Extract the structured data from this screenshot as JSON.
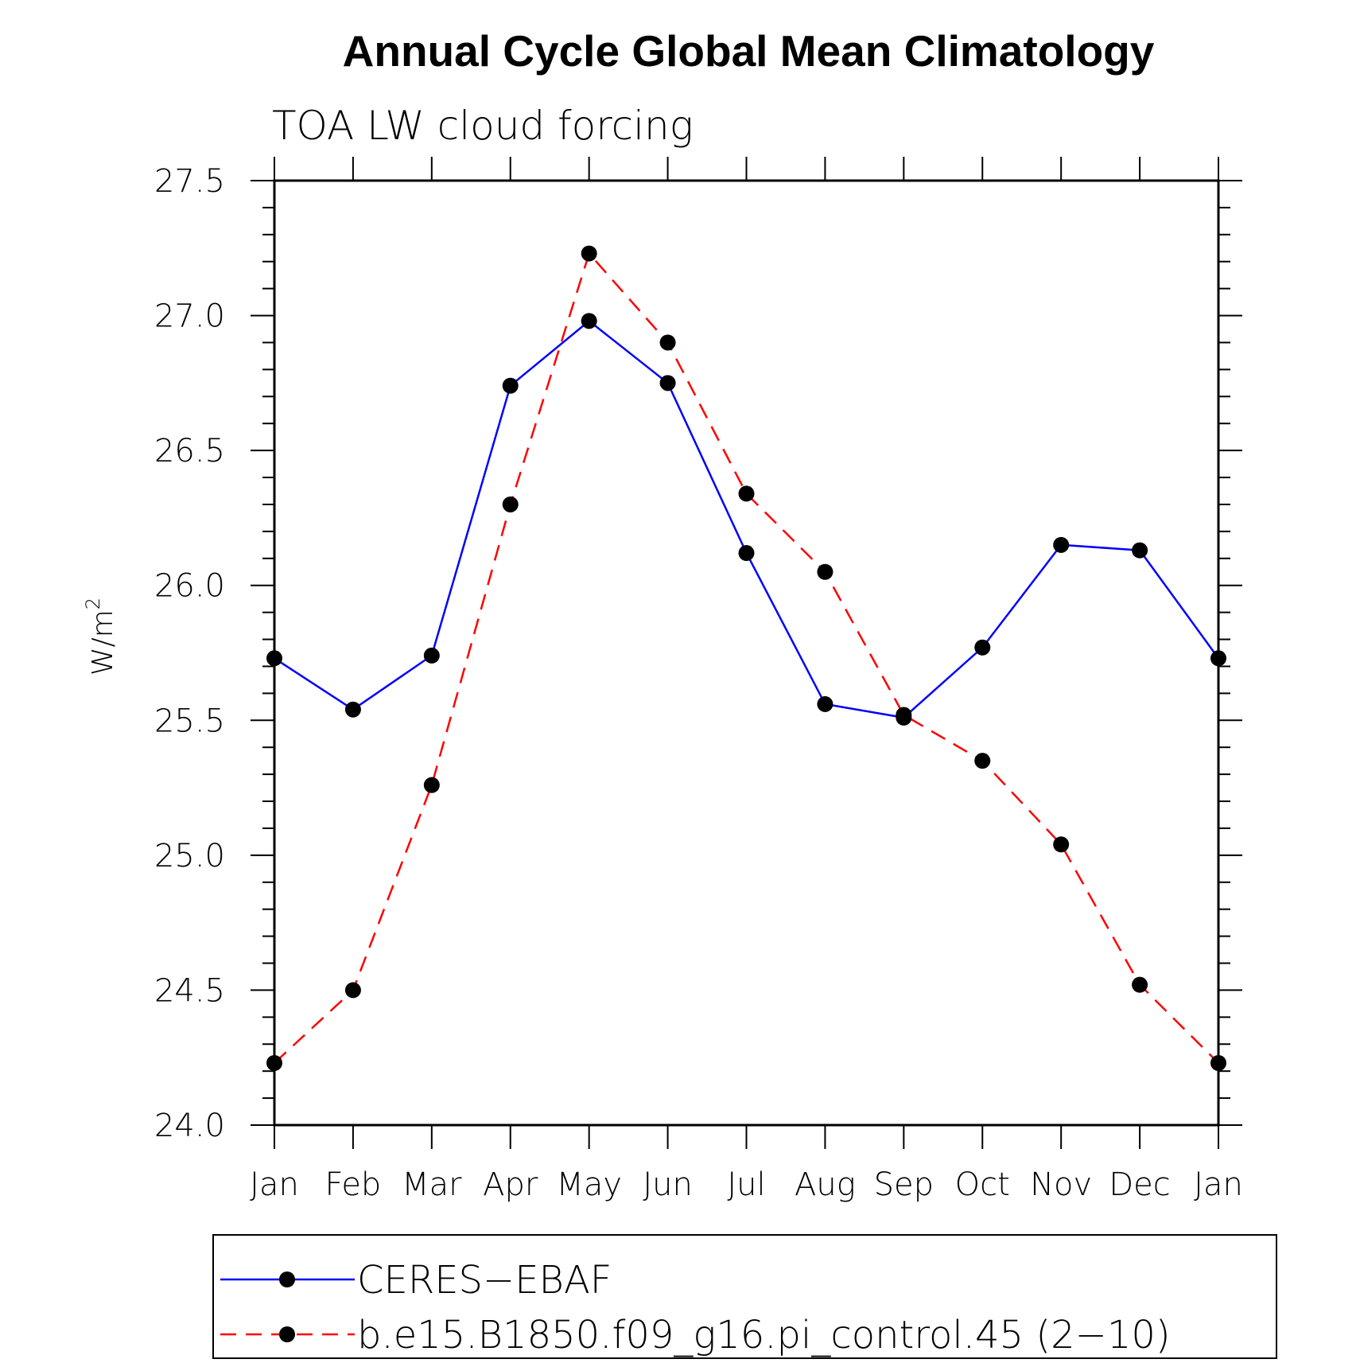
{
  "chart_data": {
    "type": "line",
    "title": "Annual Cycle Global Mean Climatology",
    "subtitle": "TOA LW cloud forcing",
    "ylabel": "W/m",
    "ylabel_sup": "2",
    "xlabel": "",
    "categories": [
      "Jan",
      "Feb",
      "Mar",
      "Apr",
      "May",
      "Jun",
      "Jul",
      "Aug",
      "Sep",
      "Oct",
      "Nov",
      "Dec",
      "Jan"
    ],
    "ylim": [
      24.0,
      27.5
    ],
    "yticks": [
      "24.0",
      "24.5",
      "25.0",
      "25.5",
      "26.0",
      "26.5",
      "27.0",
      "27.5"
    ],
    "grid": false,
    "legend_position": "bottom",
    "series": [
      {
        "name": "CERES−EBAF",
        "color": "#0000ff",
        "style": "solid",
        "marker": "filled-circle",
        "values": [
          25.73,
          25.54,
          25.74,
          26.74,
          26.98,
          26.75,
          26.12,
          25.56,
          25.51,
          25.77,
          26.15,
          26.13,
          25.73
        ]
      },
      {
        "name": "b.e15.B1850.f09_g16.pi_control.45 (2−10)",
        "color": "#ff0000",
        "style": "dashed",
        "marker": "filled-circle",
        "values": [
          24.23,
          24.5,
          25.26,
          26.3,
          27.23,
          26.9,
          26.34,
          26.05,
          25.52,
          25.35,
          25.04,
          24.52,
          24.23
        ]
      }
    ]
  }
}
